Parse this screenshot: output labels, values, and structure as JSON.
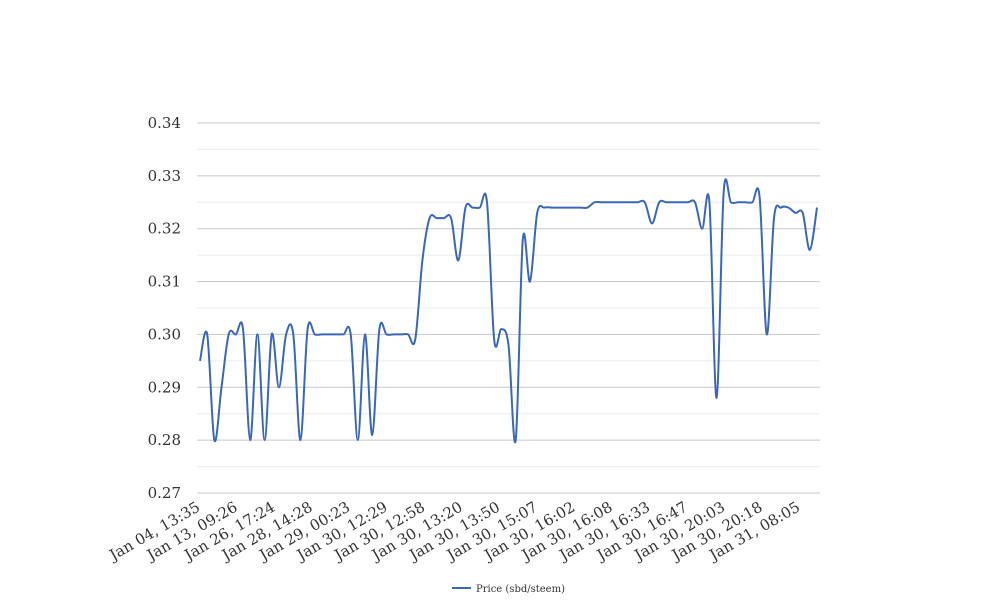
{
  "chart_data": {
    "type": "line",
    "title": "",
    "xlabel": "",
    "ylabel": "",
    "ylim": [
      0.27,
      0.34
    ],
    "yticks": [
      0.27,
      0.28,
      0.29,
      0.3,
      0.31,
      0.32,
      0.33,
      0.34
    ],
    "ytick_labels": [
      "0.27",
      "0.28",
      "0.29",
      "0.30",
      "0.31",
      "0.32",
      "0.33",
      "0.34"
    ],
    "grid": true,
    "legend_position": "bottom",
    "line_color": "#3b67b8",
    "x_tick_labels": [
      "Jan 04, 13:35",
      "Jan 13, 09:26",
      "Jan 26, 17:24",
      "Jan 28, 14:28",
      "Jan 29, 00:23",
      "Jan 30, 12:29",
      "Jan 30, 12:58",
      "Jan 30, 13:20",
      "Jan 30, 13:50",
      "Jan 30, 15:07",
      "Jan 30, 16:02",
      "Jan 30, 16:08",
      "Jan 30, 16:33",
      "Jan 30, 16:47",
      "Jan 30, 20:03",
      "Jan 30, 20:18",
      "Jan 31, 08:05"
    ],
    "series": [
      {
        "name": "Price (sbd/steem)",
        "values": [
          0.295,
          0.3,
          0.28,
          0.29,
          0.3,
          0.3,
          0.301,
          0.28,
          0.3,
          0.28,
          0.3,
          0.29,
          0.3,
          0.3,
          0.28,
          0.301,
          0.3,
          0.3,
          0.3,
          0.3,
          0.3,
          0.3,
          0.28,
          0.3,
          0.281,
          0.301,
          0.3,
          0.3,
          0.3,
          0.3,
          0.299,
          0.314,
          0.322,
          0.322,
          0.322,
          0.322,
          0.314,
          0.324,
          0.324,
          0.324,
          0.325,
          0.299,
          0.301,
          0.298,
          0.28,
          0.318,
          0.31,
          0.323,
          0.324,
          0.324,
          0.324,
          0.324,
          0.324,
          0.324,
          0.324,
          0.325,
          0.325,
          0.325,
          0.325,
          0.325,
          0.325,
          0.325,
          0.325,
          0.321,
          0.325,
          0.325,
          0.325,
          0.325,
          0.325,
          0.325,
          0.32,
          0.325,
          0.288,
          0.327,
          0.325,
          0.325,
          0.325,
          0.325,
          0.326,
          0.3,
          0.322,
          0.324,
          0.324,
          0.323,
          0.323,
          0.316,
          0.324
        ]
      }
    ]
  }
}
